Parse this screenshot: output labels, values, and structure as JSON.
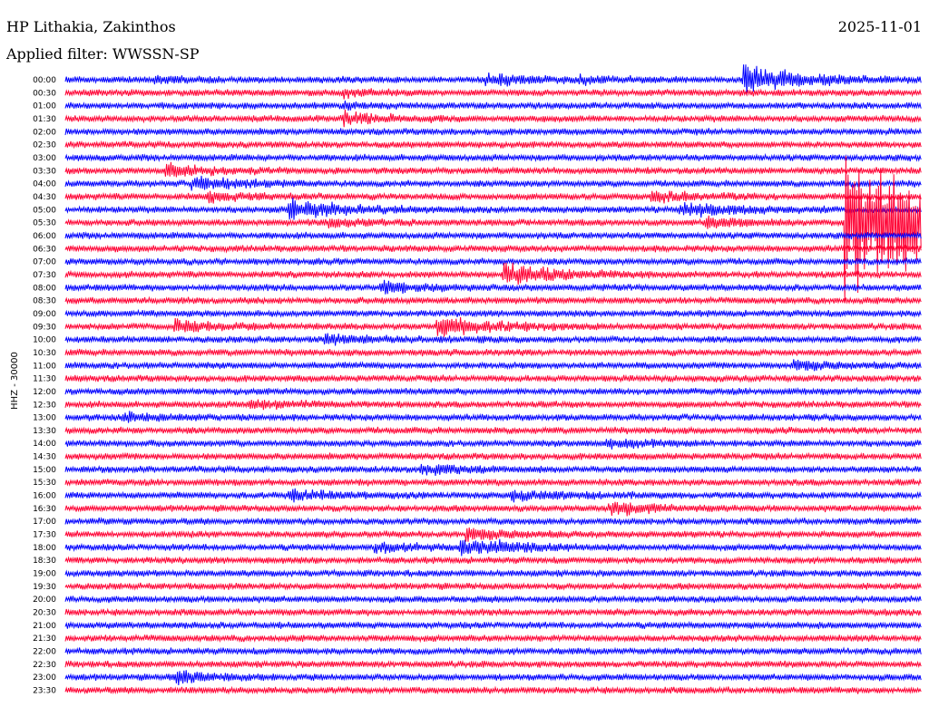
{
  "header": {
    "station": "HP Lithakia, Zakinthos",
    "date": "2025-11-01",
    "filter": "Applied filter: WWSSN-SP"
  },
  "chart_data": {
    "type": "line",
    "title": "HP Lithakia, Zakinthos",
    "subtitle": "Applied filter: WWSSN-SP",
    "ylabel": "HHZ - 30000",
    "date": "2025-11-01",
    "row_labels": [
      "00:00",
      "00:30",
      "01:00",
      "01:30",
      "02:00",
      "02:30",
      "03:00",
      "03:30",
      "04:00",
      "04:30",
      "05:00",
      "05:30",
      "06:00",
      "06:30",
      "07:00",
      "07:30",
      "08:00",
      "08:30",
      "09:00",
      "09:30",
      "10:00",
      "10:30",
      "11:00",
      "11:30",
      "12:00",
      "12:30",
      "13:00",
      "13:30",
      "14:00",
      "14:30",
      "15:00",
      "15:30",
      "16:00",
      "16:30",
      "17:00",
      "17:30",
      "18:00",
      "18:30",
      "19:00",
      "19:30",
      "20:00",
      "20:30",
      "21:00",
      "21:30",
      "22:00",
      "22:30",
      "23:00",
      "23:30"
    ],
    "minutes_per_row": 30,
    "colors": [
      "#0000ff",
      "#ff0033"
    ],
    "events": [
      {
        "row": 0,
        "minute": 14.7,
        "amplitude": 1.6,
        "duration_min": 2.0
      },
      {
        "row": 0,
        "minute": 23.7,
        "amplitude": 4.5,
        "duration_min": 2.0
      },
      {
        "row": 0,
        "minute": 3.1,
        "amplitude": 1.0,
        "duration_min": 1.0
      },
      {
        "row": 0,
        "minute": 18.0,
        "amplitude": 1.0,
        "duration_min": 1.0
      },
      {
        "row": 1,
        "minute": 9.7,
        "amplitude": 1.0,
        "duration_min": 1.0
      },
      {
        "row": 2,
        "minute": 9.7,
        "amplitude": 1.0,
        "duration_min": 1.0
      },
      {
        "row": 3,
        "minute": 9.7,
        "amplitude": 2.0,
        "duration_min": 1.6
      },
      {
        "row": 7,
        "minute": 3.5,
        "amplitude": 2.0,
        "duration_min": 1.5
      },
      {
        "row": 8,
        "minute": 4.4,
        "amplitude": 2.2,
        "duration_min": 1.5
      },
      {
        "row": 9,
        "minute": 4.9,
        "amplitude": 1.3,
        "duration_min": 1.5
      },
      {
        "row": 9,
        "minute": 20.5,
        "amplitude": 1.8,
        "duration_min": 1.5
      },
      {
        "row": 10,
        "minute": 7.8,
        "amplitude": 3.0,
        "duration_min": 2.0
      },
      {
        "row": 10,
        "minute": 21.5,
        "amplitude": 2.0,
        "duration_min": 2.0
      },
      {
        "row": 11,
        "minute": 9.2,
        "amplitude": 1.2,
        "duration_min": 1.5
      },
      {
        "row": 11,
        "minute": 22.4,
        "amplitude": 1.5,
        "duration_min": 1.5
      },
      {
        "row": 15,
        "minute": 15.3,
        "amplitude": 3.5,
        "duration_min": 2.0
      },
      {
        "row": 16,
        "minute": 11.0,
        "amplitude": 1.8,
        "duration_min": 1.5
      },
      {
        "row": 19,
        "minute": 13.0,
        "amplitude": 3.0,
        "duration_min": 2.0
      },
      {
        "row": 19,
        "minute": 3.8,
        "amplitude": 2.0,
        "duration_min": 1.5
      },
      {
        "row": 20,
        "minute": 9.0,
        "amplitude": 1.5,
        "duration_min": 2.0
      },
      {
        "row": 22,
        "minute": 25.5,
        "amplitude": 1.4,
        "duration_min": 1.5
      },
      {
        "row": 25,
        "minute": 6.4,
        "amplitude": 1.2,
        "duration_min": 2.0
      },
      {
        "row": 26,
        "minute": 2.0,
        "amplitude": 1.2,
        "duration_min": 1.5
      },
      {
        "row": 28,
        "minute": 18.9,
        "amplitude": 1.4,
        "duration_min": 1.5
      },
      {
        "row": 30,
        "minute": 12.4,
        "amplitude": 1.6,
        "duration_min": 1.5
      },
      {
        "row": 32,
        "minute": 7.8,
        "amplitude": 1.5,
        "duration_min": 1.8
      },
      {
        "row": 32,
        "minute": 15.6,
        "amplitude": 1.5,
        "duration_min": 1.8
      },
      {
        "row": 33,
        "minute": 19.0,
        "amplitude": 2.2,
        "duration_min": 1.5
      },
      {
        "row": 36,
        "minute": 10.8,
        "amplitude": 1.4,
        "duration_min": 1.5
      },
      {
        "row": 36,
        "minute": 14.9,
        "amplitude": 1.2,
        "duration_min": 1.5
      },
      {
        "row": 36,
        "minute": 13.8,
        "amplitude": 2.2,
        "duration_min": 1.5
      },
      {
        "row": 35,
        "minute": 14.0,
        "amplitude": 1.8,
        "duration_min": 1.5
      },
      {
        "row": 11,
        "minute": 27.3,
        "amplitude": 25.0,
        "duration_min": 4.0
      },
      {
        "row": 46,
        "minute": 3.8,
        "amplitude": 2.0,
        "duration_min": 1.5
      }
    ],
    "grid": false
  }
}
